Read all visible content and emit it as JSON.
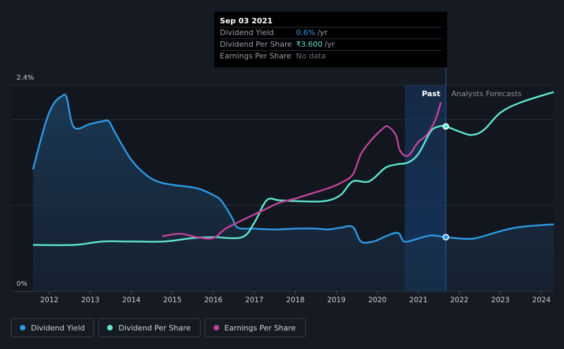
{
  "tooltip": {
    "date": "Sep 03 2021",
    "rows": [
      {
        "label": "Dividend Yield",
        "value": "0.6%",
        "unit": "/yr",
        "color": "#2e9ae6"
      },
      {
        "label": "Dividend Per Share",
        "value": "₹3.600",
        "unit": "/yr",
        "color": "#5ee8d0"
      },
      {
        "label": "Earnings Per Share",
        "value": "No data",
        "unit": "",
        "color": "#6b7280"
      }
    ]
  },
  "legend": [
    {
      "label": "Dividend Yield",
      "color": "#2e9ae6"
    },
    {
      "label": "Dividend Per Share",
      "color": "#5ee8d0"
    },
    {
      "label": "Earnings Per Share",
      "color": "#c0449a"
    }
  ],
  "chart_data": {
    "type": "line",
    "y_tick_labels": [
      "2.4%",
      "0%"
    ],
    "ylim": [
      0,
      2.4
    ],
    "xlim": [
      2011.6,
      2024.3
    ],
    "x_ticks": [
      "2012",
      "2013",
      "2014",
      "2015",
      "2016",
      "2017",
      "2018",
      "2019",
      "2020",
      "2021",
      "2022",
      "2023",
      "2024"
    ],
    "x_tick_values": [
      2012,
      2013,
      2014,
      2015,
      2016,
      2017,
      2018,
      2019,
      2020,
      2021,
      2022,
      2023,
      2024
    ],
    "divider_x": 2021.67,
    "past_region_start": 2020.67,
    "past_label": "Past",
    "forecast_label": "Analysts Forecasts",
    "series": [
      {
        "name": "Dividend Yield",
        "color": "#2e9ae6",
        "area": true,
        "points": [
          [
            2011.6,
            1.42
          ],
          [
            2011.9,
            1.95
          ],
          [
            2012.1,
            2.18
          ],
          [
            2012.3,
            2.27
          ],
          [
            2012.42,
            2.26
          ],
          [
            2012.6,
            1.91
          ],
          [
            2013.0,
            1.95
          ],
          [
            2013.3,
            1.98
          ],
          [
            2013.45,
            1.98
          ],
          [
            2013.6,
            1.85
          ],
          [
            2014.0,
            1.53
          ],
          [
            2014.4,
            1.34
          ],
          [
            2014.7,
            1.27
          ],
          [
            2015.0,
            1.24
          ],
          [
            2015.6,
            1.2
          ],
          [
            2016.0,
            1.12
          ],
          [
            2016.2,
            1.05
          ],
          [
            2016.45,
            0.86
          ],
          [
            2016.6,
            0.74
          ],
          [
            2017.0,
            0.73
          ],
          [
            2017.5,
            0.72
          ],
          [
            2018.0,
            0.73
          ],
          [
            2018.5,
            0.73
          ],
          [
            2018.8,
            0.72
          ],
          [
            2019.1,
            0.74
          ],
          [
            2019.4,
            0.75
          ],
          [
            2019.6,
            0.58
          ],
          [
            2019.9,
            0.58
          ],
          [
            2020.2,
            0.64
          ],
          [
            2020.5,
            0.68
          ],
          [
            2020.65,
            0.58
          ],
          [
            2020.9,
            0.6
          ],
          [
            2021.3,
            0.65
          ],
          [
            2021.67,
            0.63
          ],
          [
            2022.2,
            0.61
          ],
          [
            2022.5,
            0.63
          ],
          [
            2023.0,
            0.7
          ],
          [
            2023.5,
            0.75
          ],
          [
            2024.3,
            0.78
          ]
        ]
      },
      {
        "name": "Dividend Per Share",
        "color": "#5ee8d0",
        "area": false,
        "points": [
          [
            2011.6,
            0.54
          ],
          [
            2012.6,
            0.54
          ],
          [
            2013.3,
            0.58
          ],
          [
            2014.0,
            0.58
          ],
          [
            2014.8,
            0.58
          ],
          [
            2015.5,
            0.62
          ],
          [
            2016.0,
            0.63
          ],
          [
            2016.7,
            0.63
          ],
          [
            2017.0,
            0.8
          ],
          [
            2017.3,
            1.06
          ],
          [
            2017.6,
            1.06
          ],
          [
            2018.0,
            1.05
          ],
          [
            2018.7,
            1.05
          ],
          [
            2019.1,
            1.12
          ],
          [
            2019.4,
            1.28
          ],
          [
            2019.8,
            1.28
          ],
          [
            2020.2,
            1.44
          ],
          [
            2020.5,
            1.48
          ],
          [
            2020.75,
            1.5
          ],
          [
            2021.0,
            1.6
          ],
          [
            2021.3,
            1.86
          ],
          [
            2021.5,
            1.92
          ],
          [
            2021.67,
            1.92
          ],
          [
            2022.0,
            1.86
          ],
          [
            2022.3,
            1.82
          ],
          [
            2022.6,
            1.88
          ],
          [
            2023.0,
            2.08
          ],
          [
            2023.5,
            2.2
          ],
          [
            2024.3,
            2.32
          ]
        ]
      },
      {
        "name": "Earnings Per Share",
        "color": "#c0449a",
        "area": false,
        "points": [
          [
            2014.75,
            0.64
          ],
          [
            2015.2,
            0.67
          ],
          [
            2015.6,
            0.63
          ],
          [
            2016.0,
            0.62
          ],
          [
            2016.3,
            0.73
          ],
          [
            2016.8,
            0.85
          ],
          [
            2017.2,
            0.94
          ],
          [
            2017.6,
            1.03
          ],
          [
            2018.0,
            1.08
          ],
          [
            2018.4,
            1.14
          ],
          [
            2018.8,
            1.2
          ],
          [
            2019.1,
            1.26
          ],
          [
            2019.4,
            1.36
          ],
          [
            2019.6,
            1.6
          ],
          [
            2019.85,
            1.76
          ],
          [
            2020.1,
            1.88
          ],
          [
            2020.25,
            1.92
          ],
          [
            2020.45,
            1.82
          ],
          [
            2020.55,
            1.64
          ],
          [
            2020.75,
            1.58
          ],
          [
            2021.0,
            1.74
          ],
          [
            2021.2,
            1.82
          ],
          [
            2021.4,
            1.98
          ],
          [
            2021.55,
            2.2
          ]
        ]
      }
    ],
    "markers": [
      {
        "series": "Dividend Per Share",
        "x": 2021.67,
        "y": 1.92
      },
      {
        "series": "Dividend Yield",
        "x": 2021.67,
        "y": 0.63
      }
    ]
  }
}
